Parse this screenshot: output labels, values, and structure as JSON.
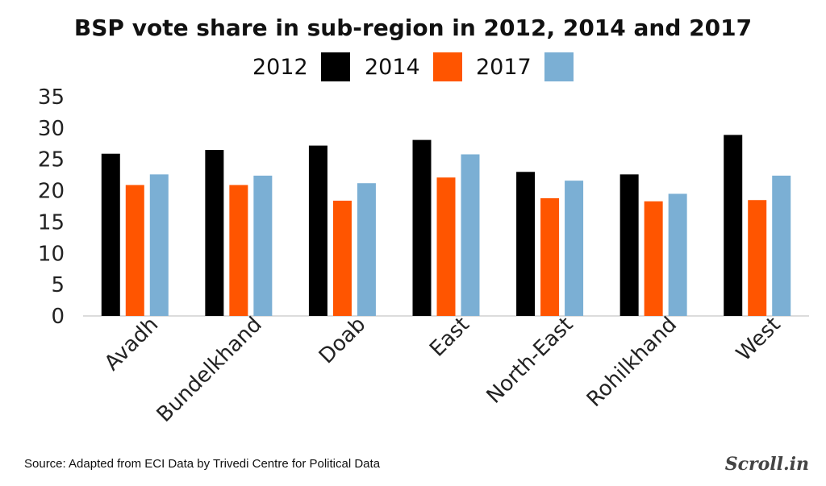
{
  "chart_data": {
    "type": "bar",
    "title": "BSP vote share in sub-region in 2012, 2014 and 2017",
    "categories": [
      "Avadh",
      "Bundelkhand",
      "Doab",
      "East",
      "North-East",
      "Rohilkhand",
      "West"
    ],
    "series": [
      {
        "name": "2012",
        "color": "#000000",
        "values": [
          25.9,
          26.5,
          27.2,
          28.1,
          23.0,
          22.6,
          28.9
        ]
      },
      {
        "name": "2014",
        "color": "#ff5500",
        "values": [
          20.9,
          20.9,
          18.4,
          22.1,
          18.8,
          18.3,
          18.5
        ]
      },
      {
        "name": "2017",
        "color": "#7bafd4",
        "values": [
          22.6,
          22.4,
          21.2,
          25.8,
          21.6,
          19.5,
          22.4
        ]
      }
    ],
    "ylim": [
      0,
      35
    ],
    "yticks": [
      0,
      5,
      10,
      15,
      20,
      25,
      30,
      35
    ],
    "xlabel": "",
    "ylabel": "",
    "grid": false,
    "legend_position": "top-center"
  },
  "footer": {
    "source": "Source: Adapted from ECI Data by Trivedi Centre for Political Data",
    "brand": "Scroll.in"
  }
}
